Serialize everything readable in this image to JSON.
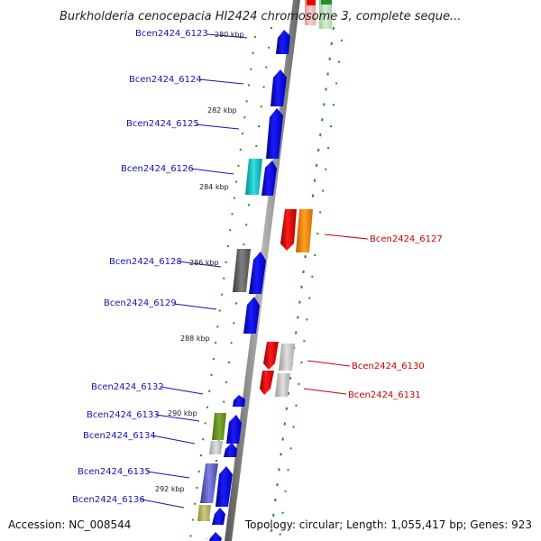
{
  "title": "Burkholderia cenocepacia HI2424 chromosome 3, complete seque...",
  "footer": {
    "accession": "Accession: NC_008544",
    "stats": "Topology: circular; Length: 1,055,417 bp; Genes: 923"
  },
  "ticks": [
    "280 kbp",
    "282 kbp",
    "284 kbp",
    "286 kbp",
    "288 kbp",
    "290 kbp",
    "292 kbp"
  ],
  "genes": [
    {
      "id": "Bcen2424_6123",
      "strand": "+",
      "color": "#0000ff"
    },
    {
      "id": "Bcen2424_6124",
      "strand": "+",
      "color": "#0000ff"
    },
    {
      "id": "Bcen2424_6125",
      "strand": "+",
      "color": "#0000ff"
    },
    {
      "id": "Bcen2424_6126",
      "strand": "+",
      "color": "#0000ff"
    },
    {
      "id": "Bcen2424_6127",
      "strand": "-",
      "color": "#ee0000"
    },
    {
      "id": "Bcen2424_6128",
      "strand": "+",
      "color": "#0000ff"
    },
    {
      "id": "Bcen2424_6129",
      "strand": "+",
      "color": "#0000ff"
    },
    {
      "id": "Bcen2424_6130",
      "strand": "-",
      "color": "#ee0000"
    },
    {
      "id": "Bcen2424_6131",
      "strand": "-",
      "color": "#ee0000"
    },
    {
      "id": "Bcen2424_6132",
      "strand": "+",
      "color": "#0000ff"
    },
    {
      "id": "Bcen2424_6133",
      "strand": "+",
      "color": "#0000ff"
    },
    {
      "id": "Bcen2424_6134",
      "strand": "+",
      "color": "#0000ff"
    },
    {
      "id": "Bcen2424_6135",
      "strand": "+",
      "color": "#0000ff"
    },
    {
      "id": "Bcen2424_6136",
      "strand": "+",
      "color": "#0000ff"
    }
  ],
  "colors": {
    "forward_label": "#1414b4",
    "reverse_label": "#c80000",
    "backbone": "#888888",
    "gc_skew": "#228b22"
  }
}
